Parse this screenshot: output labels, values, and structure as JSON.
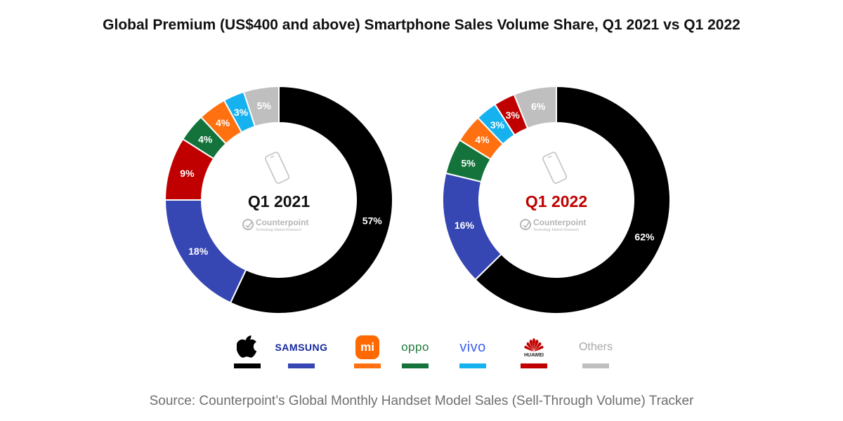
{
  "title": "Global Premium (US$400 and above) Smartphone Sales Volume Share, Q1 2021 vs Q1 2022",
  "chart_data": [
    {
      "type": "pie",
      "subtype": "donut",
      "title": "Q1 2021",
      "title_color": "#111111",
      "categories": [
        "Apple",
        "Samsung",
        "Xiaomi",
        "OPPO",
        "vivo",
        "Huawei",
        "Others"
      ],
      "series": [
        {
          "name": "Q1 2021",
          "values": [
            57,
            18,
            4,
            4,
            3,
            9,
            5
          ],
          "labels": [
            "57%",
            "18%",
            "4%",
            "4%",
            "3%",
            "9%",
            "5%"
          ]
        }
      ],
      "draw_order": [
        "Apple",
        "Samsung",
        "Huawei",
        "OPPO",
        "Xiaomi",
        "vivo",
        "Others"
      ]
    },
    {
      "type": "pie",
      "subtype": "donut",
      "title": "Q1 2022",
      "title_color": "#c00000",
      "categories": [
        "Apple",
        "Samsung",
        "Xiaomi",
        "OPPO",
        "vivo",
        "Huawei",
        "Others"
      ],
      "series": [
        {
          "name": "Q1 2022",
          "values": [
            62,
            16,
            4,
            5,
            3,
            3,
            6
          ],
          "labels": [
            "62%",
            "16%",
            "4%",
            "5%",
            "3%",
            "3%",
            "6%"
          ]
        }
      ],
      "draw_order": [
        "Apple",
        "Samsung",
        "OPPO",
        "Xiaomi",
        "vivo",
        "Huawei",
        "Others"
      ]
    }
  ],
  "watermark": {
    "name": "Counterpoint",
    "tagline": "Technology Market Research"
  },
  "colors": {
    "Apple": "#000000",
    "Samsung": "#3646b3",
    "Xiaomi": "#ff7110",
    "OPPO": "#13733a",
    "vivo": "#16b2f0",
    "Huawei": "#c00000",
    "Others": "#bfbfbf"
  },
  "legend": {
    "items": [
      {
        "brand": "Apple",
        "icon": "apple-logo-icon",
        "color": "#000000"
      },
      {
        "brand": "Samsung",
        "text": "SAMSUNG",
        "color": "#1428a0"
      },
      {
        "brand": "Xiaomi",
        "icon": "xiaomi-logo-icon",
        "text": "mi",
        "color": "#ff7110"
      },
      {
        "brand": "OPPO",
        "text": "oppo",
        "color": "#13733a"
      },
      {
        "brand": "vivo",
        "text": "vivo",
        "color": "#3d63ee"
      },
      {
        "brand": "Huawei",
        "icon": "huawei-logo-icon",
        "text": "HUAWEI",
        "color": "#c00000"
      },
      {
        "brand": "Others",
        "text": "Others",
        "color": "#bfbfbf"
      }
    ]
  },
  "source": "Source: Counterpoint’s Global Monthly Handset Model Sales (Sell-Through Volume) Tracker"
}
